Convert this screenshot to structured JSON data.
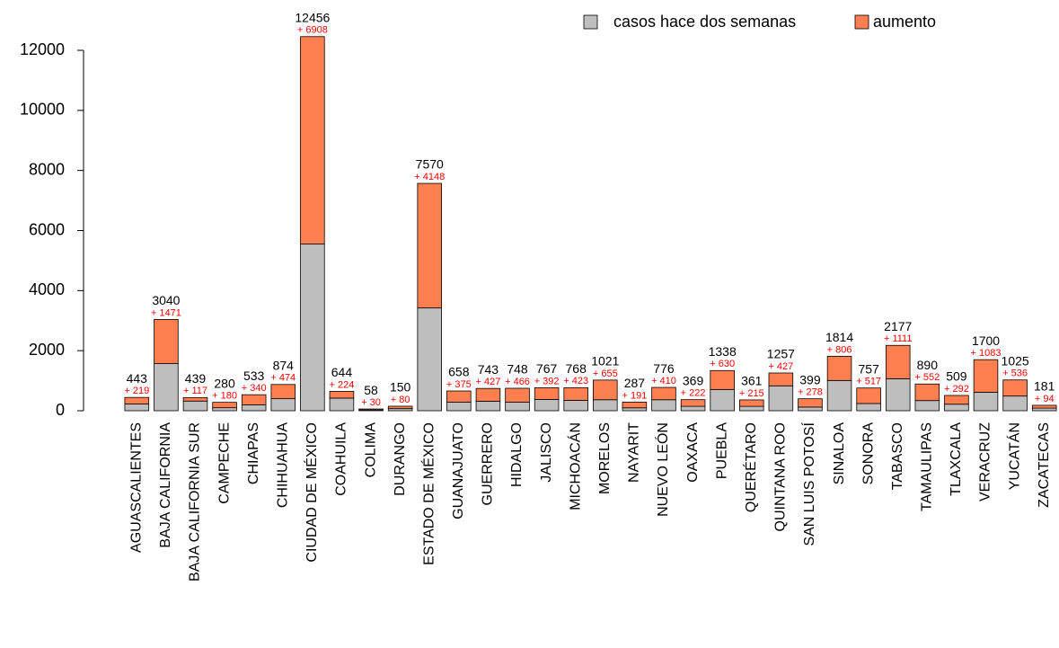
{
  "chart_data": {
    "type": "stacked_bar",
    "categories": [
      "AGUASCALIENTES",
      "BAJA CALIFORNIA",
      "BAJA CALIFORNIA SUR",
      "CAMPECHE",
      "CHIAPAS",
      "CHIHUAHUA",
      "CIUDAD DE MÉXICO",
      "COAHUILA",
      "COLIMA",
      "DURANGO",
      "ESTADO DE MÉXICO",
      "GUANAJUATO",
      "GUERRERO",
      "HIDALGO",
      "JALISCO",
      "MICHOACÁN",
      "MORELOS",
      "NAYARIT",
      "NUEVO LEÓN",
      "OAXACA",
      "PUEBLA",
      "QUERÉTARO",
      "QUINTANA ROO",
      "SAN LUIS POTOSÍ",
      "SINALOA",
      "SONORA",
      "TABASCO",
      "TAMAULIPAS",
      "TLAXCALA",
      "VERACRUZ",
      "YUCATÁN",
      "ZACATECAS"
    ],
    "series": [
      {
        "name": "casos hace dos semanas",
        "color": "#bebebe",
        "values": [
          224,
          1569,
          322,
          100,
          193,
          400,
          5548,
          420,
          28,
          70,
          3422,
          283,
          316,
          282,
          375,
          345,
          366,
          96,
          366,
          147,
          708,
          146,
          830,
          121,
          1008,
          240,
          1066,
          338,
          217,
          617,
          489,
          87
        ]
      },
      {
        "name": "aumento",
        "color": "#ff7f50",
        "values": [
          219,
          1471,
          117,
          180,
          340,
          474,
          6908,
          224,
          30,
          80,
          4148,
          375,
          427,
          466,
          392,
          423,
          655,
          191,
          410,
          222,
          630,
          215,
          427,
          278,
          806,
          517,
          1111,
          552,
          292,
          1083,
          536,
          94
        ],
        "value_labels": [
          "+ 219",
          "+ 1471",
          "+ 117",
          "+ 180",
          "+ 340",
          "+ 474",
          "+ 6908",
          "+ 224",
          "+ 30",
          "+ 80",
          "+ 4148",
          "+ 375",
          "+ 427",
          "+ 466",
          "+ 392",
          "+ 423",
          "+ 655",
          "+ 191",
          "+ 410",
          "+ 222",
          "+ 630",
          "+ 215",
          "+ 427",
          "+ 278",
          "+ 806",
          "+ 517",
          "+ 1111",
          "+ 552",
          "+ 292",
          "+ 1083",
          "+ 536",
          "+ 94"
        ]
      }
    ],
    "totals": [
      443,
      3040,
      439,
      280,
      533,
      874,
      12456,
      644,
      58,
      150,
      7570,
      658,
      743,
      748,
      767,
      768,
      1021,
      287,
      776,
      369,
      1338,
      361,
      1257,
      399,
      1814,
      757,
      2177,
      890,
      509,
      1700,
      1025,
      181
    ],
    "ylim": [
      0,
      12500
    ],
    "yticks": [
      0,
      2000,
      4000,
      6000,
      8000,
      10000,
      12000
    ],
    "legend": "top-right"
  }
}
